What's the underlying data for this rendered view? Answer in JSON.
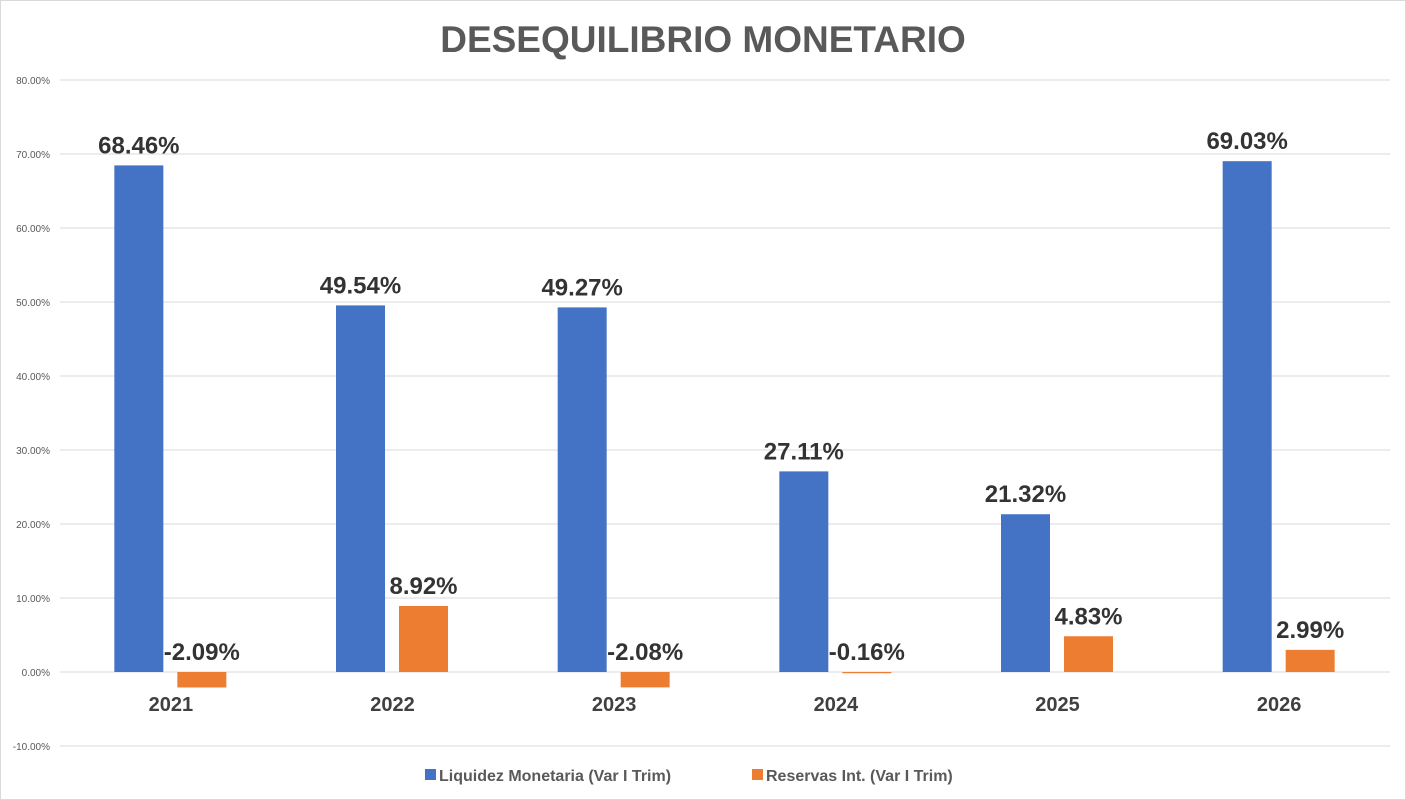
{
  "chart_data": {
    "type": "bar",
    "title": "DESEQUILIBRIO MONETARIO",
    "xlabel": "",
    "ylabel": "",
    "categories": [
      "2021",
      "2022",
      "2023",
      "2024",
      "2025",
      "2026"
    ],
    "series": [
      {
        "name": "Liquidez Monetaria (Var I Trim)",
        "color": "#4472C4",
        "values": [
          68.46,
          49.54,
          49.27,
          27.11,
          21.32,
          69.03
        ],
        "labels": [
          "68.46%",
          "49.54%",
          "49.27%",
          "27.11%",
          "21.32%",
          "69.03%"
        ]
      },
      {
        "name": "Reservas Int. (Var I Trim)",
        "color": "#ED7D31",
        "values": [
          -2.09,
          8.92,
          -2.08,
          -0.16,
          4.83,
          2.99
        ],
        "labels": [
          "-2.09%",
          "8.92%",
          "-2.08%",
          "-0.16%",
          "4.83%",
          "2.99%"
        ]
      }
    ],
    "ylim": [
      -10,
      80
    ],
    "yticks": [
      -10,
      0,
      10,
      20,
      30,
      40,
      50,
      60,
      70,
      80
    ],
    "ytick_labels": [
      "-10.00%",
      "0.00%",
      "10.00%",
      "20.00%",
      "30.00%",
      "40.00%",
      "50.00%",
      "60.00%",
      "70.00%",
      "80.00%"
    ],
    "grid": true,
    "legend": "bottom"
  }
}
